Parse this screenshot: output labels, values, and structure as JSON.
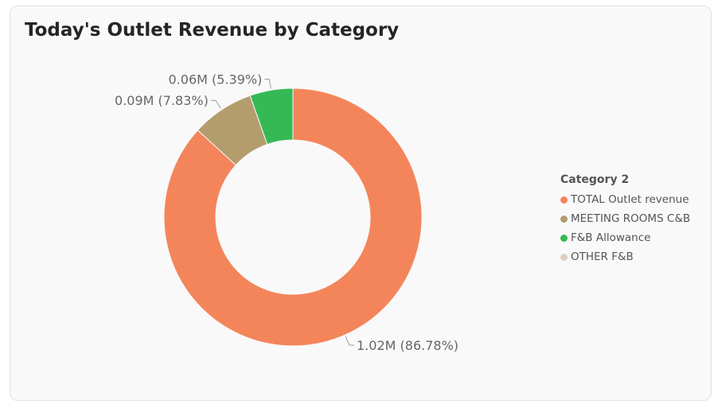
{
  "chart_data": {
    "type": "donut",
    "title": "Today's Outlet Revenue by Category",
    "legend_title": "Category 2",
    "legend_position": "right",
    "slices": [
      {
        "name": "TOTAL Outlet revenue",
        "value": 1.02,
        "percent": 86.78,
        "label": "1.02M (86.78%)",
        "color": "#f4855b"
      },
      {
        "name": "MEETING ROOMS C&B",
        "value": 0.09,
        "percent": 7.83,
        "label": "0.09M (7.83%)",
        "color": "#b39d6d"
      },
      {
        "name": "F&B Allowance",
        "value": 0.06,
        "percent": 5.39,
        "label": "0.06M (5.39%)",
        "color": "#35b955"
      },
      {
        "name": "OTHER F&B",
        "value": 0,
        "percent": 0,
        "label": "",
        "color": "#ddd1c1"
      }
    ]
  }
}
